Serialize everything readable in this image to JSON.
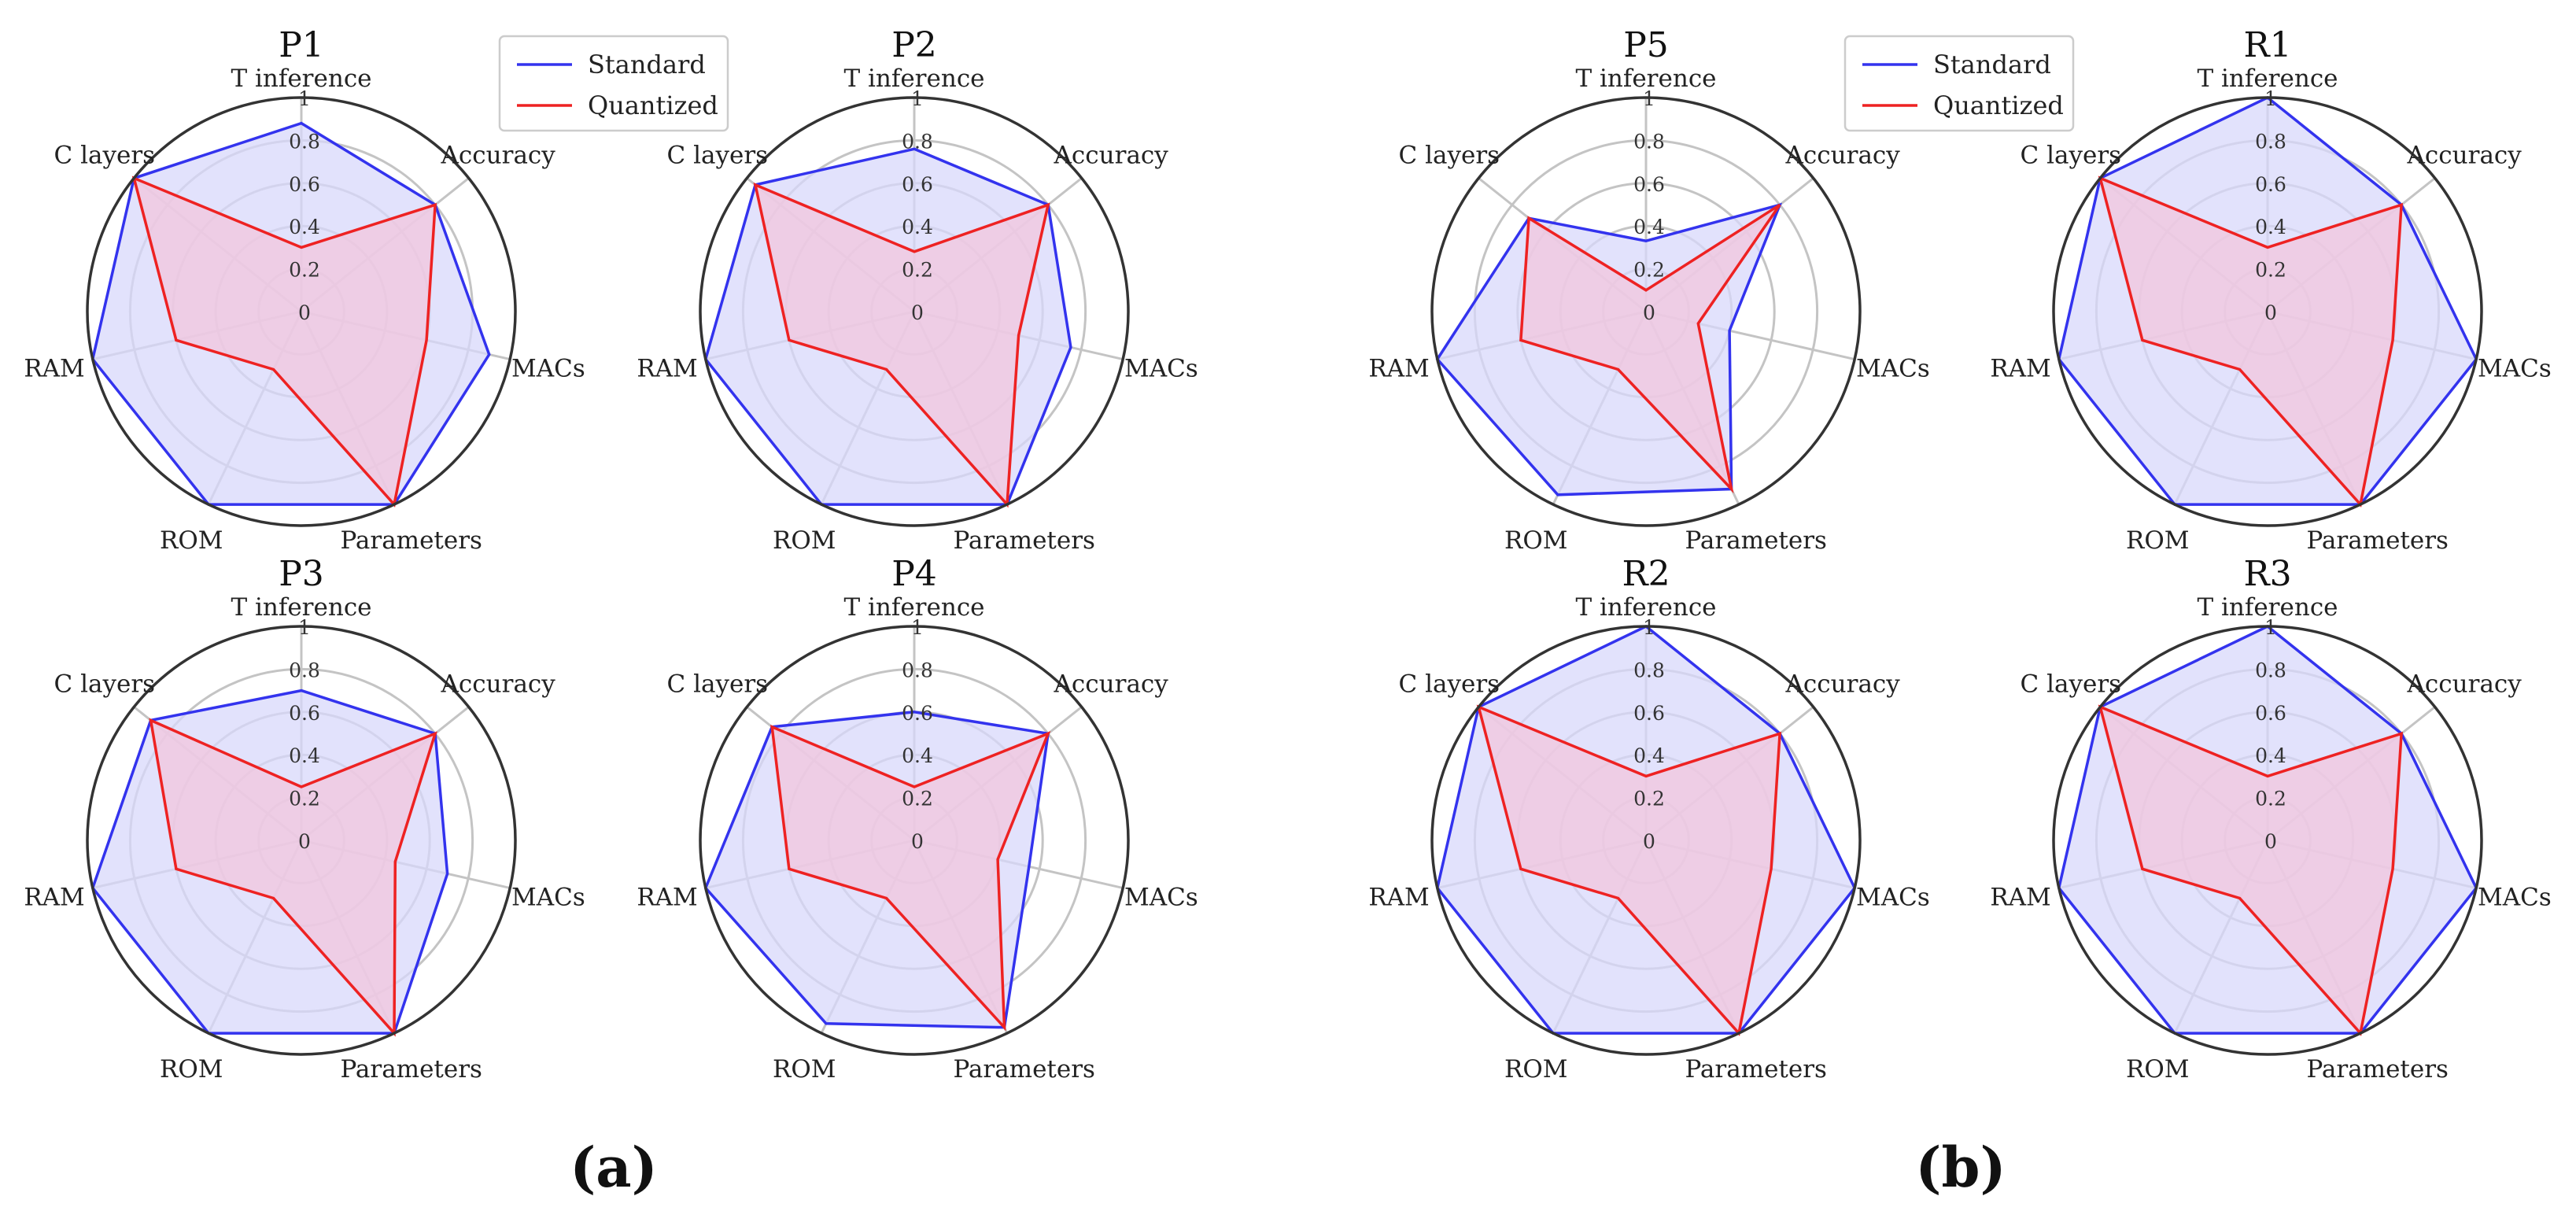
{
  "colors": {
    "standard": "#3333ee",
    "quantized": "#ee2222",
    "standard_fill": "#d8d8fb",
    "quantized_fill": "#f3c4dc",
    "grid": "#c4c4c4",
    "rim": "#333333"
  },
  "panel_labels": [
    "(a)",
    "(b)"
  ],
  "chart_data": [
    {
      "type": "radar",
      "title": "P1",
      "axes": [
        "T inference",
        "Accuracy",
        "MACs",
        "Parameters",
        "ROM",
        "RAM",
        "C layers"
      ],
      "radial_ticks": [
        "0",
        "0.2",
        "0.4",
        "0.6",
        "0.8",
        "1"
      ],
      "rlim": [
        0,
        1
      ],
      "series": [
        {
          "name": "Standard",
          "values": [
            0.88,
            0.8,
            0.9,
            1.0,
            1.0,
            1.0,
            1.0
          ]
        },
        {
          "name": "Quantized",
          "values": [
            0.3,
            0.8,
            0.6,
            1.0,
            0.3,
            0.6,
            1.0
          ]
        }
      ],
      "legend": [
        "Standard",
        "Quantized"
      ]
    },
    {
      "type": "radar",
      "title": "P2",
      "axes": [
        "T inference",
        "Accuracy",
        "MACs",
        "Parameters",
        "ROM",
        "RAM",
        "C layers"
      ],
      "radial_ticks": [
        "0",
        "0.2",
        "0.4",
        "0.6",
        "0.8",
        "1"
      ],
      "rlim": [
        0,
        1
      ],
      "series": [
        {
          "name": "Standard",
          "values": [
            0.76,
            0.8,
            0.75,
            1.0,
            1.0,
            1.0,
            0.95
          ]
        },
        {
          "name": "Quantized",
          "values": [
            0.28,
            0.8,
            0.5,
            1.0,
            0.3,
            0.6,
            0.95
          ]
        }
      ]
    },
    {
      "type": "radar",
      "title": "P3",
      "axes": [
        "T inference",
        "Accuracy",
        "MACs",
        "Parameters",
        "ROM",
        "RAM",
        "C layers"
      ],
      "radial_ticks": [
        "0",
        "0.2",
        "0.4",
        "0.6",
        "0.8",
        "1"
      ],
      "rlim": [
        0,
        1
      ],
      "series": [
        {
          "name": "Standard",
          "values": [
            0.7,
            0.8,
            0.7,
            1.0,
            1.0,
            1.0,
            0.9
          ]
        },
        {
          "name": "Quantized",
          "values": [
            0.25,
            0.8,
            0.45,
            1.0,
            0.3,
            0.6,
            0.9
          ]
        }
      ]
    },
    {
      "type": "radar",
      "title": "P4",
      "axes": [
        "T inference",
        "Accuracy",
        "MACs",
        "Parameters",
        "ROM",
        "RAM",
        "C layers"
      ],
      "radial_ticks": [
        "0",
        "0.2",
        "0.4",
        "0.6",
        "0.8",
        "1"
      ],
      "rlim": [
        0,
        1
      ],
      "series": [
        {
          "name": "Standard",
          "values": [
            0.6,
            0.8,
            0.55,
            0.97,
            0.95,
            1.0,
            0.85
          ]
        },
        {
          "name": "Quantized",
          "values": [
            0.25,
            0.8,
            0.4,
            0.97,
            0.3,
            0.6,
            0.85
          ]
        }
      ]
    },
    {
      "type": "radar",
      "title": "P5",
      "axes": [
        "T inference",
        "Accuracy",
        "MACs",
        "Parameters",
        "ROM",
        "RAM",
        "C layers"
      ],
      "radial_ticks": [
        "0",
        "0.2",
        "0.4",
        "0.6",
        "0.8",
        "1"
      ],
      "rlim": [
        0,
        1
      ],
      "series": [
        {
          "name": "Standard",
          "values": [
            0.33,
            0.8,
            0.4,
            0.92,
            0.95,
            1.0,
            0.7
          ]
        },
        {
          "name": "Quantized",
          "values": [
            0.1,
            0.8,
            0.25,
            0.92,
            0.3,
            0.6,
            0.7
          ]
        }
      ],
      "legend": [
        "Standard",
        "Quantized"
      ]
    },
    {
      "type": "radar",
      "title": "R1",
      "axes": [
        "T inference",
        "Accuracy",
        "MACs",
        "Parameters",
        "ROM",
        "RAM",
        "C layers"
      ],
      "radial_ticks": [
        "0",
        "0.2",
        "0.4",
        "0.6",
        "0.8",
        "1"
      ],
      "rlim": [
        0,
        1
      ],
      "series": [
        {
          "name": "Standard",
          "values": [
            1.0,
            0.8,
            1.0,
            1.0,
            1.0,
            1.0,
            1.0
          ]
        },
        {
          "name": "Quantized",
          "values": [
            0.3,
            0.8,
            0.6,
            1.0,
            0.3,
            0.6,
            1.0
          ]
        }
      ]
    },
    {
      "type": "radar",
      "title": "R2",
      "axes": [
        "T inference",
        "Accuracy",
        "MACs",
        "Parameters",
        "ROM",
        "RAM",
        "C layers"
      ],
      "radial_ticks": [
        "0",
        "0.2",
        "0.4",
        "0.6",
        "0.8",
        "1"
      ],
      "rlim": [
        0,
        1
      ],
      "series": [
        {
          "name": "Standard",
          "values": [
            1.0,
            0.8,
            1.0,
            1.0,
            1.0,
            1.0,
            1.0
          ]
        },
        {
          "name": "Quantized",
          "values": [
            0.3,
            0.8,
            0.6,
            1.0,
            0.3,
            0.6,
            1.0
          ]
        }
      ]
    },
    {
      "type": "radar",
      "title": "R3",
      "axes": [
        "T inference",
        "Accuracy",
        "MACs",
        "Parameters",
        "ROM",
        "RAM",
        "C layers"
      ],
      "radial_ticks": [
        "0",
        "0.2",
        "0.4",
        "0.6",
        "0.8",
        "1"
      ],
      "rlim": [
        0,
        1
      ],
      "series": [
        {
          "name": "Standard",
          "values": [
            1.0,
            0.8,
            1.0,
            1.0,
            1.0,
            1.0,
            1.0
          ]
        },
        {
          "name": "Quantized",
          "values": [
            0.3,
            0.8,
            0.6,
            1.0,
            0.3,
            0.6,
            1.0
          ]
        }
      ]
    }
  ]
}
